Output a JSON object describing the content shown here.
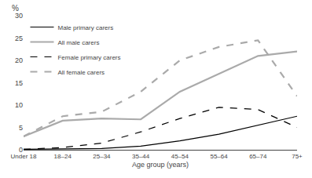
{
  "chart_data": {
    "type": "line",
    "xlabel": "Age group (years)",
    "ylabel": "%",
    "categories": [
      "Under 18",
      "18–24",
      "25–34",
      "35–44",
      "45–54",
      "55–64",
      "65–74",
      "75+"
    ],
    "series": [
      {
        "name": "Male primary carers",
        "color": "#000000",
        "line_style": "solid",
        "values": [
          0.1,
          0.2,
          0.3,
          0.8,
          2.0,
          3.5,
          5.5,
          7.5
        ]
      },
      {
        "name": "All male carers",
        "color": "#aaaaaa",
        "line_style": "solid",
        "values": [
          3.0,
          6.5,
          7.0,
          6.8,
          13.0,
          17.0,
          21.0,
          22.0
        ]
      },
      {
        "name": "Female primary carers",
        "color": "#000000",
        "line_style": "dashed",
        "values": [
          0.1,
          0.5,
          1.5,
          4.0,
          7.0,
          9.5,
          9.0,
          5.0
        ]
      },
      {
        "name": "All female carers",
        "color": "#aaaaaa",
        "line_style": "dashed",
        "values": [
          3.0,
          7.5,
          8.5,
          13.0,
          20.0,
          23.0,
          24.5,
          12.0
        ]
      }
    ],
    "ylim": [
      0,
      30
    ],
    "yticks": [
      0,
      5,
      10,
      15,
      20,
      25,
      30
    ],
    "grid": false,
    "legend": "upper left"
  }
}
